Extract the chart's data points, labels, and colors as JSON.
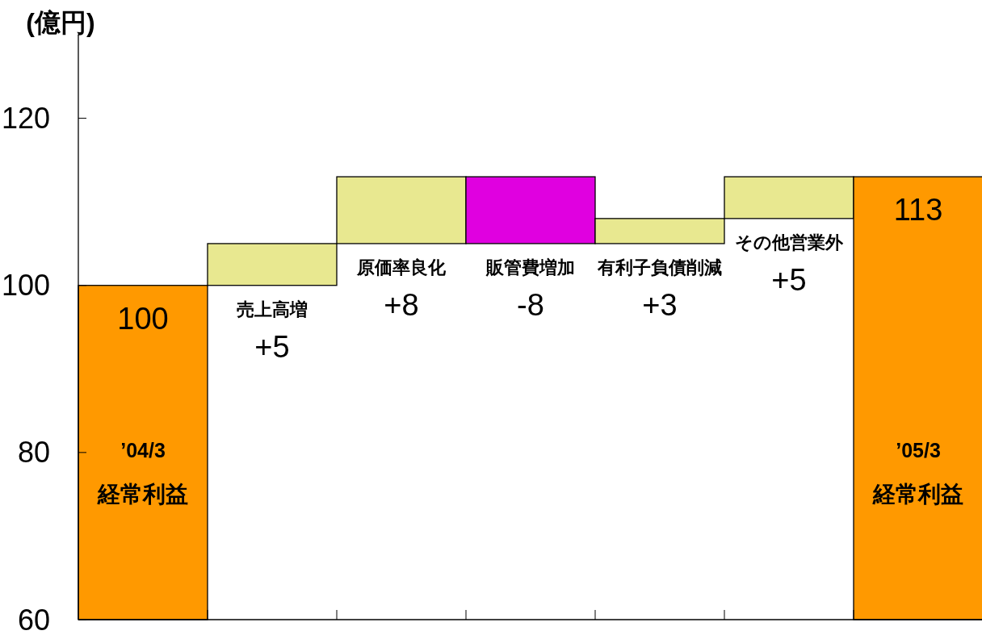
{
  "chart_data": {
    "type": "bar",
    "ylabel": "(億円)",
    "categories": [
      "’04/3\n経常利益",
      "売上高増",
      "原価率良化",
      "販管費増加",
      "有利子負債削減",
      "その他営業外",
      "’05/3\n経常利益"
    ],
    "values": [
      100,
      5,
      8,
      -8,
      3,
      5,
      113
    ],
    "base": [
      null,
      100,
      105,
      113,
      105,
      108,
      null
    ],
    "colors": [
      "#ff9900",
      "#e8e890",
      "#e8e890",
      "#e000e0",
      "#e8e890",
      "#e8e890",
      "#ff9900"
    ],
    "value_labels": [
      "100",
      "+5",
      "+8",
      "-8",
      "+3",
      "+5",
      "113"
    ],
    "ylim": [
      60,
      130
    ],
    "yticks": [
      60,
      80,
      100,
      120
    ],
    "tick_labels": "y"
  }
}
